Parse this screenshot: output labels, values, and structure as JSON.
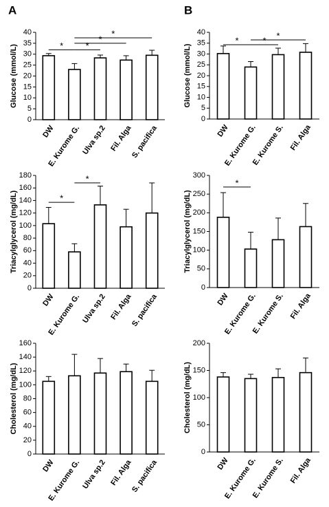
{
  "panels": [
    "A",
    "B"
  ],
  "chart_data": [
    {
      "type": "bar",
      "ylabel": "Glucose (mmol/L)",
      "categories": [
        "DW",
        "E. Kurome G.",
        "Ulva sp.2",
        "Fil. Alga",
        "S. pacifica"
      ],
      "values": [
        29.3,
        23,
        28.3,
        27.3,
        29.5
      ],
      "errors": [
        1,
        2.7,
        1.3,
        2,
        2.3
      ],
      "ylim": [
        0,
        40
      ],
      "yticks": [
        0,
        5,
        10,
        15,
        20,
        25,
        30,
        35,
        40
      ],
      "color": "#ffffff",
      "edgecolor": "#000000",
      "significance": [
        {
          "from": 0,
          "to": 1,
          "y": 32,
          "label": "*"
        },
        {
          "from": 1,
          "to": 2,
          "y": 32,
          "label": "*"
        },
        {
          "from": 1,
          "to": 3,
          "y": 35,
          "label": "*"
        },
        {
          "from": 1,
          "to": 4,
          "y": 37.5,
          "label": "*"
        }
      ]
    },
    {
      "type": "bar",
      "ylabel": "Glucose (mmol/L)",
      "categories": [
        "DW",
        "E. Kurome G.",
        "E. Kurome S.",
        "Fil. Alga"
      ],
      "values": [
        30.2,
        24,
        29.7,
        30.8
      ],
      "errors": [
        3.5,
        2.5,
        3,
        4
      ],
      "ylim": [
        0,
        40
      ],
      "yticks": [
        0,
        5,
        10,
        15,
        20,
        25,
        30,
        35,
        40
      ],
      "color": "#ffffff",
      "edgecolor": "#000000",
      "significance": [
        {
          "from": 0,
          "to": 1,
          "y": 34.3,
          "label": "*"
        },
        {
          "from": 1,
          "to": 2,
          "y": 34.3,
          "label": "*"
        },
        {
          "from": 1,
          "to": 3,
          "y": 36.5,
          "label": "*"
        }
      ]
    },
    {
      "type": "bar",
      "ylabel": "Triacylglycerol (mg/dL)",
      "categories": [
        "DW",
        "E. Kurome G.",
        "Ulva sp.2",
        "Fil. Alga",
        "S. pacifica"
      ],
      "values": [
        103,
        58,
        133,
        98,
        120
      ],
      "errors": [
        26,
        13,
        30,
        28,
        48
      ],
      "ylim": [
        0,
        180
      ],
      "yticks": [
        0,
        20,
        40,
        60,
        80,
        100,
        120,
        140,
        160,
        180
      ],
      "color": "#ffffff",
      "edgecolor": "#000000",
      "significance": [
        {
          "from": 0,
          "to": 1,
          "y": 137,
          "label": "*"
        },
        {
          "from": 1,
          "to": 2,
          "y": 168,
          "label": "*"
        }
      ]
    },
    {
      "type": "bar",
      "ylabel": "Triacylglycerol (mg/dL)",
      "categories": [
        "DW",
        "E. Kurome G.",
        "E. Kurome S.",
        "Fil. Alga"
      ],
      "values": [
        188,
        103,
        128,
        163
      ],
      "errors": [
        66,
        45,
        58,
        62
      ],
      "ylim": [
        0,
        300
      ],
      "yticks": [
        0,
        50,
        100,
        150,
        200,
        250,
        300
      ],
      "color": "#ffffff",
      "edgecolor": "#000000",
      "significance": [
        {
          "from": 0,
          "to": 1,
          "y": 269,
          "label": "*"
        }
      ]
    },
    {
      "type": "bar",
      "ylabel": "Cholesterol (mg/dL)",
      "categories": [
        "DW",
        "E. Kurome G.",
        "Ulva sp.2",
        "Fil. Alga",
        "S. pacifica"
      ],
      "values": [
        105,
        113,
        117,
        119,
        105
      ],
      "errors": [
        7,
        31,
        21,
        11,
        16
      ],
      "ylim": [
        0,
        160
      ],
      "yticks": [
        0,
        20,
        40,
        60,
        80,
        100,
        120,
        140,
        160
      ],
      "color": "#ffffff",
      "edgecolor": "#000000",
      "significance": []
    },
    {
      "type": "bar",
      "ylabel": "Cholesterol (mg/dL)",
      "categories": [
        "DW",
        "E. Kurome G.",
        "E. Kurome S.",
        "Fil. Alga"
      ],
      "values": [
        138,
        135,
        137,
        146
      ],
      "errors": [
        8,
        8,
        16,
        27
      ],
      "ylim": [
        0,
        200
      ],
      "yticks": [
        0,
        50,
        100,
        150,
        200
      ],
      "color": "#ffffff",
      "edgecolor": "#000000",
      "significance": []
    }
  ]
}
